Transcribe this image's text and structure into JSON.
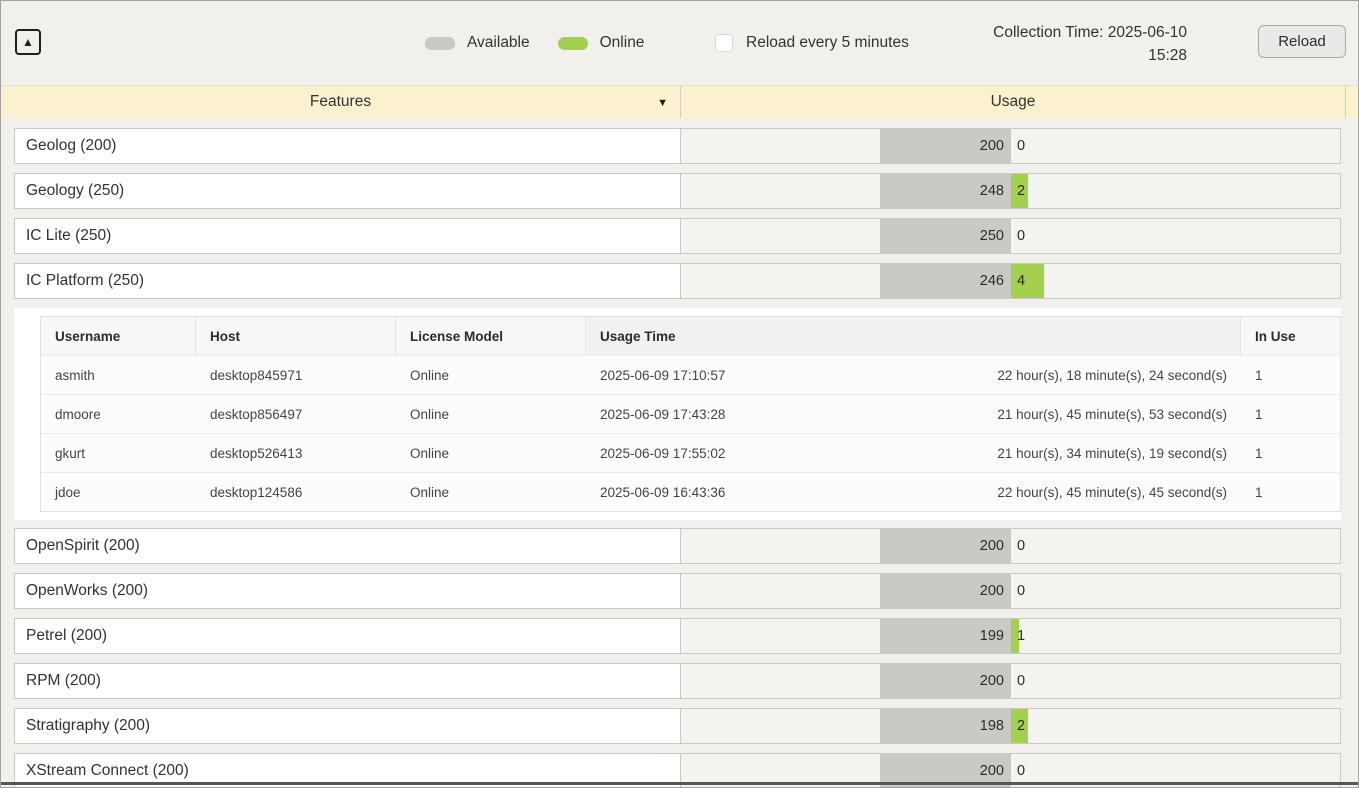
{
  "topbar": {
    "collapse_icon_glyph": "▲",
    "legend": {
      "available_label": "Available",
      "online_label": "Online"
    },
    "reload_checkbox_label": "Reload every 5 minutes",
    "collection_time_line1": "Collection Time: 2025-06-10",
    "collection_time_line2": "15:28",
    "reload_button_label": "Reload"
  },
  "column_headers": {
    "features": "Features",
    "features_menu_icon_glyph": "▼",
    "usage": "Usage"
  },
  "subtable_columns": {
    "username": "Username",
    "host": "Host",
    "license_model": "License Model",
    "usage_time": "Usage Time",
    "in_use": "In Use"
  },
  "features": [
    {
      "label": "Geolog (200)",
      "available": 200,
      "in_use": 0
    },
    {
      "label": "Geology (250)",
      "available": 248,
      "in_use": 2
    },
    {
      "label": "IC Lite (250)",
      "available": 250,
      "in_use": 0
    },
    {
      "label": "IC Platform (250)",
      "available": 246,
      "in_use": 4,
      "expanded": true,
      "sessions": [
        {
          "username": "asmith",
          "host": "desktop845971",
          "license_model": "Online",
          "start_time": "2025-06-09 17:10:57",
          "duration": "22 hour(s), 18 minute(s), 24 second(s)",
          "in_use": 1
        },
        {
          "username": "dmoore",
          "host": "desktop856497",
          "license_model": "Online",
          "start_time": "2025-06-09 17:43:28",
          "duration": "21 hour(s), 45 minute(s), 53 second(s)",
          "in_use": 1
        },
        {
          "username": "gkurt",
          "host": "desktop526413",
          "license_model": "Online",
          "start_time": "2025-06-09 17:55:02",
          "duration": "21 hour(s), 34 minute(s), 19 second(s)",
          "in_use": 1
        },
        {
          "username": "jdoe",
          "host": "desktop124586",
          "license_model": "Online",
          "start_time": "2025-06-09 16:43:36",
          "duration": "22 hour(s), 45 minute(s), 45 second(s)",
          "in_use": 1
        }
      ]
    },
    {
      "label": "OpenSpirit (200)",
      "available": 200,
      "in_use": 0
    },
    {
      "label": "OpenWorks (200)",
      "available": 200,
      "in_use": 0
    },
    {
      "label": "Petrel (200)",
      "available": 199,
      "in_use": 1
    },
    {
      "label": "RPM (200)",
      "available": 200,
      "in_use": 0
    },
    {
      "label": "Stratigraphy (200)",
      "available": 198,
      "in_use": 2
    },
    {
      "label": "XStream Connect (200)",
      "available": 200,
      "in_use": 0
    }
  ],
  "colors": {
    "available_bar": "#c9c9c6",
    "online_bar": "#a3d04d",
    "header_bg": "#fbf1cf",
    "page_bg": "#f1f0ec"
  }
}
